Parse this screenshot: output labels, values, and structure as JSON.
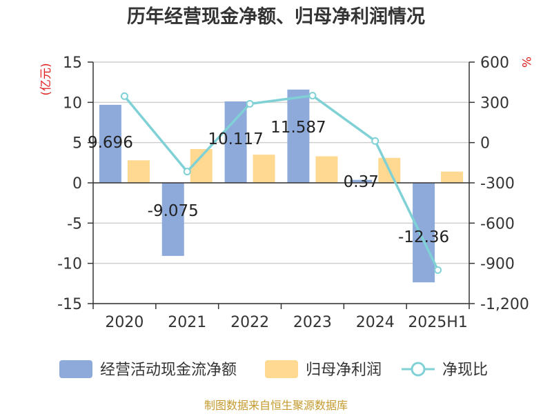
{
  "chart_data": {
    "type": "bar",
    "title": "历年经营现金净额、归母净利润情况",
    "categories": [
      "2020",
      "2021",
      "2022",
      "2023",
      "2024",
      "2025H1"
    ],
    "y_left": {
      "unit": "(亿元)",
      "ylim": [
        -15,
        15
      ],
      "ticks": [
        "15",
        "10",
        "5",
        "0",
        "-5",
        "-10",
        "-15"
      ]
    },
    "y_right": {
      "unit": "%",
      "ylim": [
        -1200,
        600
      ],
      "ticks": [
        "600",
        "300",
        "0",
        "-300",
        "-600",
        "-900",
        "-1,200"
      ]
    },
    "series": [
      {
        "name": "经营活动现金流净额",
        "type": "bar",
        "axis": "left",
        "color": "#8eaadb",
        "values": [
          9.696,
          -9.075,
          10.117,
          11.587,
          0.37,
          -12.36
        ],
        "labels": [
          "9.696",
          "-9.075",
          "10.117",
          "11.587",
          "0.37",
          "-12.36"
        ]
      },
      {
        "name": "归母净利润",
        "type": "bar",
        "axis": "left",
        "color": "#ffd892",
        "values": [
          2.8,
          4.2,
          3.5,
          3.3,
          3.1,
          1.4
        ]
      },
      {
        "name": "净现比",
        "type": "line",
        "axis": "right",
        "color": "#7fd1d6",
        "values": [
          346,
          -216,
          289,
          350,
          12,
          -950
        ]
      }
    ],
    "grid": true,
    "legend": "bottom"
  },
  "footer": {
    "source": "制图数据来自恒生聚源数据库"
  }
}
